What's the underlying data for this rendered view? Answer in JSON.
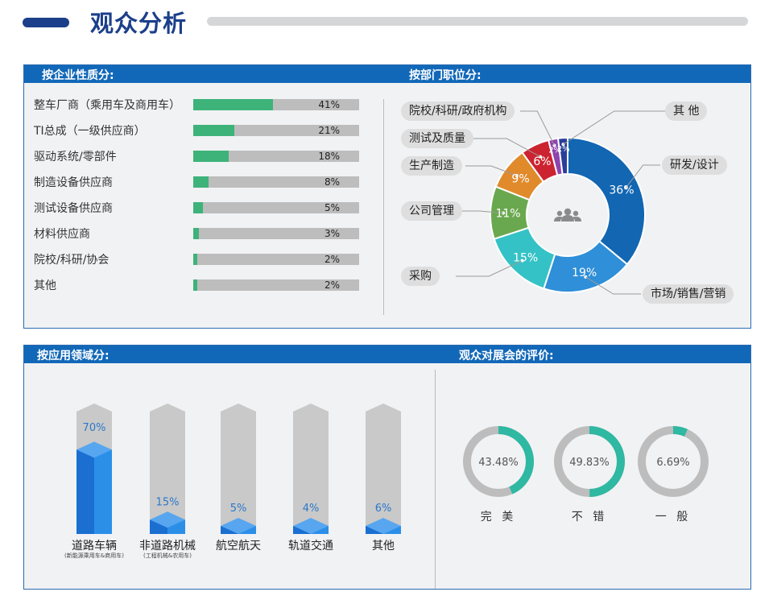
{
  "header": {
    "title": "观众分析"
  },
  "company_panel": {
    "heading": "按企业性质分:",
    "chart_data": {
      "type": "bar",
      "orientation": "horizontal",
      "categories": [
        "整车厂商（乘用车及商用车）",
        "TI总成（一级供应商）",
        "驱动系统/零部件",
        "制造设备供应商",
        "测试设备供应商",
        "材料供应商",
        "院校/科研/协会",
        "其他"
      ],
      "values": [
        41,
        21,
        18,
        8,
        5,
        3,
        2,
        2
      ],
      "value_labels": [
        "41%",
        "21%",
        "18%",
        "8%",
        "5%",
        "3%",
        "2%",
        "2%"
      ],
      "unit": "%",
      "bar_color": "#3db37a",
      "track_color": "#bdbdbd"
    }
  },
  "department_panel": {
    "heading": "按部门职位分:",
    "chart_data": {
      "type": "pie",
      "variant": "donut",
      "categories": [
        "研发/设计",
        "市场/销售/营销",
        "采购",
        "公司管理",
        "生产制造",
        "测试及质量",
        "院校/科研/政府机构",
        "其 他"
      ],
      "values": [
        36,
        19,
        15,
        11,
        9,
        6,
        2,
        2
      ],
      "value_labels": [
        "36%",
        "19%",
        "15%",
        "11%",
        "9%",
        "6%",
        "2%",
        "2%"
      ],
      "colors": [
        "#1266b2",
        "#2f8fd8",
        "#35c2c6",
        "#6aa84f",
        "#e08a2c",
        "#cc2331",
        "#8e44ad",
        "#2a3f99"
      ],
      "center_icon": "people-group-icon"
    }
  },
  "application_panel": {
    "heading": "按应用领域分:",
    "chart_data": {
      "type": "bar",
      "style": "3d-column",
      "categories": [
        "道路车辆",
        "非道路机械",
        "航空航天",
        "轨道交通",
        "其他"
      ],
      "sublabels": [
        "(新能源乘用车&商用车)",
        "(工程机械&农用车)"
      ],
      "values": [
        70,
        15,
        5,
        4,
        6
      ],
      "value_labels": [
        "70%",
        "15%",
        "5%",
        "4%",
        "6%"
      ],
      "unit": "%",
      "ylim": [
        0,
        100
      ],
      "color": "#1c72cf",
      "track_color": "#c9c9c9"
    }
  },
  "evaluation_panel": {
    "heading": "观众对展会的评价:",
    "chart_data": {
      "type": "pie",
      "variant": "rings",
      "categories": [
        "完 美",
        "不 错",
        "一 般"
      ],
      "values": [
        43.48,
        49.83,
        6.69
      ],
      "value_labels": [
        "43.48%",
        "49.83%",
        "6.69%"
      ],
      "ring_color": "#2fb8a2",
      "track_color": "#bdbdbd"
    }
  }
}
